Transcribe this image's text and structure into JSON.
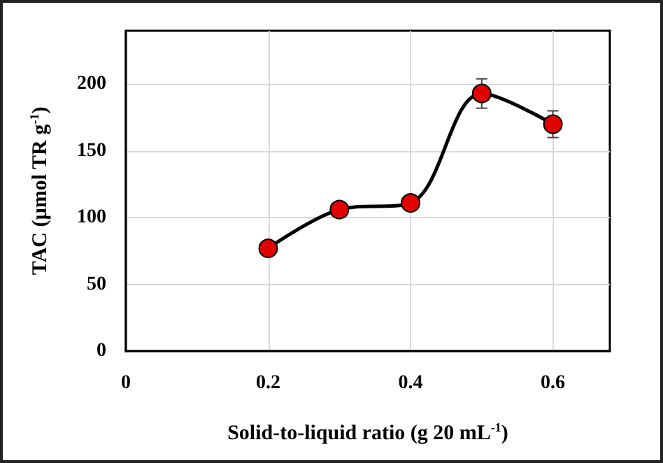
{
  "chart_data": {
    "type": "line",
    "xlabel": "Solid-to-liquid ratio (g 20 mL$^{-1}$)",
    "ylabel": "TAC (µmol TR g$^{-1}$)",
    "x": [
      0.2,
      0.3,
      0.4,
      0.5,
      0.6
    ],
    "series": [
      {
        "color": "#e00000",
        "values": [
          77,
          106,
          111,
          193,
          170
        ],
        "errors": [
          null,
          null,
          null,
          11,
          10
        ]
      }
    ],
    "xlim": [
      0,
      0.68
    ],
    "xticks": [
      0,
      0.2,
      0.4,
      0.6
    ],
    "ylim": [
      0,
      240
    ],
    "yticks": [
      0,
      50,
      100,
      150,
      200
    ],
    "grid": true,
    "marker": "circle",
    "line_style": "solid"
  }
}
